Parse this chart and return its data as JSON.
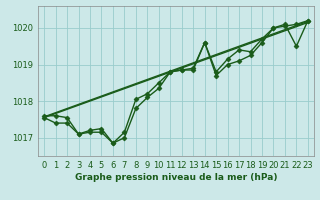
{
  "xlabel": "Graphe pression niveau de la mer (hPa)",
  "background_color": "#cce8e8",
  "grid_color": "#99cccc",
  "line_color": "#1a5c1a",
  "text_color": "#1a5c1a",
  "ylim": [
    1016.5,
    1020.6
  ],
  "xlim": [
    -0.5,
    23.5
  ],
  "yticks": [
    1017,
    1018,
    1019,
    1020
  ],
  "xticks": [
    0,
    1,
    2,
    3,
    4,
    5,
    6,
    7,
    8,
    9,
    10,
    11,
    12,
    13,
    14,
    15,
    16,
    17,
    18,
    19,
    20,
    21,
    22,
    23
  ],
  "series0": [
    1017.6,
    1017.6,
    1017.55,
    1017.1,
    1017.15,
    1017.15,
    1016.85,
    1017.0,
    1017.8,
    1018.1,
    1018.35,
    1018.8,
    1018.85,
    1018.85,
    1019.6,
    1018.7,
    1019.0,
    1019.1,
    1019.25,
    1019.6,
    1020.0,
    1020.05,
    1020.1,
    1020.2
  ],
  "series1": [
    1017.55,
    1017.4,
    1017.4,
    1017.1,
    1017.2,
    1017.25,
    1016.85,
    1017.15,
    1018.05,
    1018.2,
    1018.5,
    1018.8,
    1018.85,
    1018.9,
    1019.6,
    1018.8,
    1019.15,
    1019.4,
    1019.35,
    1019.7,
    1020.0,
    1020.1,
    1019.5,
    1020.2
  ],
  "trend1_x": [
    0,
    23
  ],
  "trend1_y": [
    1017.55,
    1020.15
  ],
  "trend2_x": [
    0,
    23
  ],
  "trend2_y": [
    1017.57,
    1020.18
  ],
  "marker": "D",
  "markersize": 2.5,
  "linewidth": 1.0,
  "tick_labelsize": 6,
  "xlabel_fontsize": 6.5
}
